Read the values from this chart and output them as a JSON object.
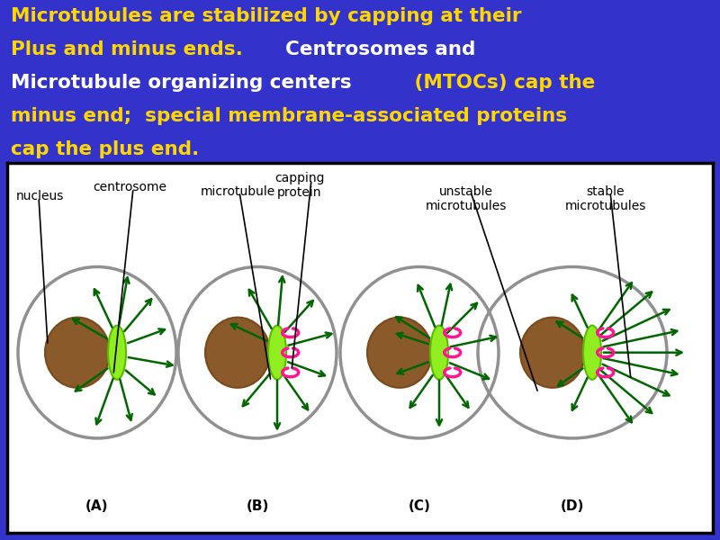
{
  "bg_color": "#3333cc",
  "text_color_yellow": "#FFD700",
  "text_color_white": "#FFFFFF",
  "panel_bg": "#FFFFFF",
  "nucleus_color": "#8B5A2B",
  "centrosome_color": "#90EE20",
  "cell_outline": "#909090",
  "arrow_color": "#006600",
  "cap_color": "#FF1493",
  "labels": [
    "(A)",
    "(B)",
    "(C)",
    "(D)"
  ]
}
